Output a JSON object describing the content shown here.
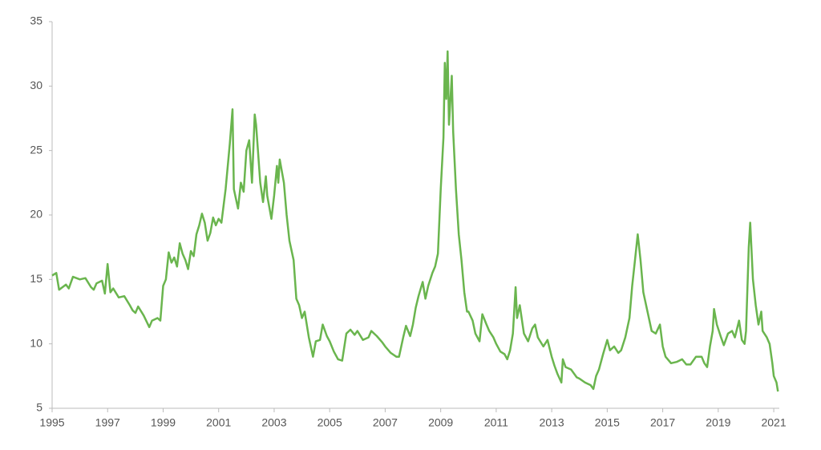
{
  "chart_data": {
    "type": "line",
    "x": [
      1995.0,
      1995.15,
      1995.25,
      1995.5,
      1995.6,
      1995.75,
      1996.0,
      1996.2,
      1996.4,
      1996.5,
      1996.6,
      1996.8,
      1996.9,
      1997.0,
      1997.1,
      1997.2,
      1997.4,
      1997.6,
      1997.8,
      1997.9,
      1998.0,
      1998.1,
      1998.3,
      1998.5,
      1998.6,
      1998.8,
      1998.9,
      1999.0,
      1999.1,
      1999.2,
      1999.3,
      1999.4,
      1999.5,
      1999.6,
      1999.7,
      1999.8,
      1999.9,
      2000.0,
      2000.1,
      2000.2,
      2000.3,
      2000.4,
      2000.5,
      2000.6,
      2000.7,
      2000.8,
      2000.9,
      2001.0,
      2001.1,
      2001.25,
      2001.4,
      2001.5,
      2001.55,
      2001.7,
      2001.8,
      2001.9,
      2002.0,
      2002.1,
      2002.2,
      2002.3,
      2002.35,
      2002.5,
      2002.6,
      2002.7,
      2002.75,
      2002.9,
      2003.0,
      2003.1,
      2003.15,
      2003.2,
      2003.35,
      2003.45,
      2003.55,
      2003.7,
      2003.8,
      2003.9,
      2004.0,
      2004.1,
      2004.25,
      2004.4,
      2004.5,
      2004.65,
      2004.75,
      2004.9,
      2005.0,
      2005.15,
      2005.3,
      2005.45,
      2005.6,
      2005.75,
      2005.9,
      2006.0,
      2006.2,
      2006.4,
      2006.5,
      2006.7,
      2006.9,
      2007.0,
      2007.2,
      2007.4,
      2007.5,
      2007.65,
      2007.75,
      2007.9,
      2008.0,
      2008.1,
      2008.2,
      2008.35,
      2008.45,
      2008.55,
      2008.7,
      2008.8,
      2008.9,
      2009.0,
      2009.1,
      2009.15,
      2009.2,
      2009.25,
      2009.3,
      2009.4,
      2009.45,
      2009.55,
      2009.65,
      2009.75,
      2009.85,
      2009.95,
      2010.0,
      2010.15,
      2010.25,
      2010.4,
      2010.5,
      2010.65,
      2010.75,
      2010.9,
      2011.0,
      2011.15,
      2011.3,
      2011.4,
      2011.5,
      2011.6,
      2011.7,
      2011.75,
      2011.85,
      2011.95,
      2012.0,
      2012.15,
      2012.3,
      2012.4,
      2012.5,
      2012.7,
      2012.85,
      2013.0,
      2013.1,
      2013.2,
      2013.35,
      2013.4,
      2013.5,
      2013.7,
      2013.9,
      2014.0,
      2014.2,
      2014.4,
      2014.5,
      2014.6,
      2014.7,
      2014.85,
      2015.0,
      2015.1,
      2015.25,
      2015.4,
      2015.5,
      2015.65,
      2015.8,
      2015.9,
      2016.0,
      2016.1,
      2016.2,
      2016.3,
      2016.45,
      2016.6,
      2016.75,
      2016.9,
      2017.0,
      2017.1,
      2017.3,
      2017.5,
      2017.7,
      2017.85,
      2018.0,
      2018.2,
      2018.4,
      2018.5,
      2018.6,
      2018.7,
      2018.8,
      2018.85,
      2018.95,
      2019.1,
      2019.2,
      2019.35,
      2019.5,
      2019.6,
      2019.75,
      2019.85,
      2019.95,
      2020.0,
      2020.1,
      2020.15,
      2020.25,
      2020.35,
      2020.45,
      2020.55,
      2020.6,
      2020.75,
      2020.85,
      2020.95,
      2021.0,
      2021.1,
      2021.15
    ],
    "values": [
      15.3,
      15.5,
      14.2,
      14.6,
      14.3,
      15.2,
      15.0,
      15.1,
      14.4,
      14.2,
      14.7,
      14.9,
      13.9,
      16.2,
      14.0,
      14.3,
      13.6,
      13.7,
      13.0,
      12.6,
      12.4,
      12.9,
      12.2,
      11.3,
      11.8,
      12.0,
      11.8,
      14.5,
      15.0,
      17.1,
      16.3,
      16.7,
      16.0,
      17.8,
      17.0,
      16.5,
      15.8,
      17.2,
      16.8,
      18.5,
      19.2,
      20.1,
      19.4,
      18.0,
      18.6,
      19.8,
      19.2,
      19.7,
      19.4,
      22.0,
      25.5,
      28.2,
      22.0,
      20.5,
      22.5,
      21.8,
      25.0,
      25.8,
      22.5,
      27.8,
      27.0,
      22.5,
      21.0,
      23.0,
      21.5,
      19.7,
      21.5,
      23.8,
      22.5,
      24.3,
      22.5,
      20.0,
      18.0,
      16.5,
      13.5,
      13.0,
      12.0,
      12.5,
      10.5,
      9.0,
      10.2,
      10.3,
      11.5,
      10.6,
      10.2,
      9.4,
      8.8,
      8.7,
      10.8,
      11.1,
      10.7,
      11.0,
      10.3,
      10.5,
      11.0,
      10.6,
      10.1,
      9.8,
      9.3,
      9.0,
      9.0,
      10.5,
      11.4,
      10.6,
      11.5,
      12.8,
      13.7,
      14.8,
      13.5,
      14.5,
      15.5,
      16.0,
      17.0,
      22.0,
      26.0,
      31.8,
      29.0,
      32.7,
      27.0,
      30.8,
      26.5,
      22.0,
      18.5,
      16.5,
      14.0,
      12.5,
      12.5,
      11.8,
      10.8,
      10.2,
      12.3,
      11.5,
      11.0,
      10.5,
      10.0,
      9.4,
      9.2,
      8.8,
      9.5,
      10.8,
      14.4,
      12.0,
      13.0,
      11.5,
      10.8,
      10.2,
      11.2,
      11.5,
      10.5,
      9.8,
      10.3,
      9.0,
      8.3,
      7.7,
      7.0,
      8.8,
      8.2,
      8.0,
      7.4,
      7.3,
      7.0,
      6.8,
      6.5,
      7.5,
      8.0,
      9.2,
      10.3,
      9.5,
      9.8,
      9.3,
      9.5,
      10.5,
      12.0,
      14.5,
      16.5,
      18.5,
      16.5,
      14.0,
      12.5,
      11.0,
      10.8,
      11.5,
      9.8,
      9.0,
      8.5,
      8.6,
      8.8,
      8.4,
      8.4,
      9.0,
      9.0,
      8.5,
      8.2,
      9.8,
      11.0,
      12.7,
      11.5,
      10.5,
      9.9,
      10.8,
      11.0,
      10.5,
      11.8,
      10.3,
      10.0,
      11.0,
      17.5,
      19.4,
      15.0,
      13.0,
      11.5,
      12.5,
      11.0,
      10.5,
      10.0,
      8.5,
      7.5,
      7.0,
      6.3
    ],
    "color": "#6ab54e",
    "xlim": [
      1995,
      2021.2
    ],
    "xticks": [
      1995,
      1997,
      1999,
      2001,
      2003,
      2005,
      2007,
      2009,
      2011,
      2013,
      2015,
      2017,
      2019,
      2021
    ],
    "ylim": [
      5,
      35
    ],
    "yticks": [
      5,
      10,
      15,
      20,
      25,
      30,
      35
    ]
  }
}
